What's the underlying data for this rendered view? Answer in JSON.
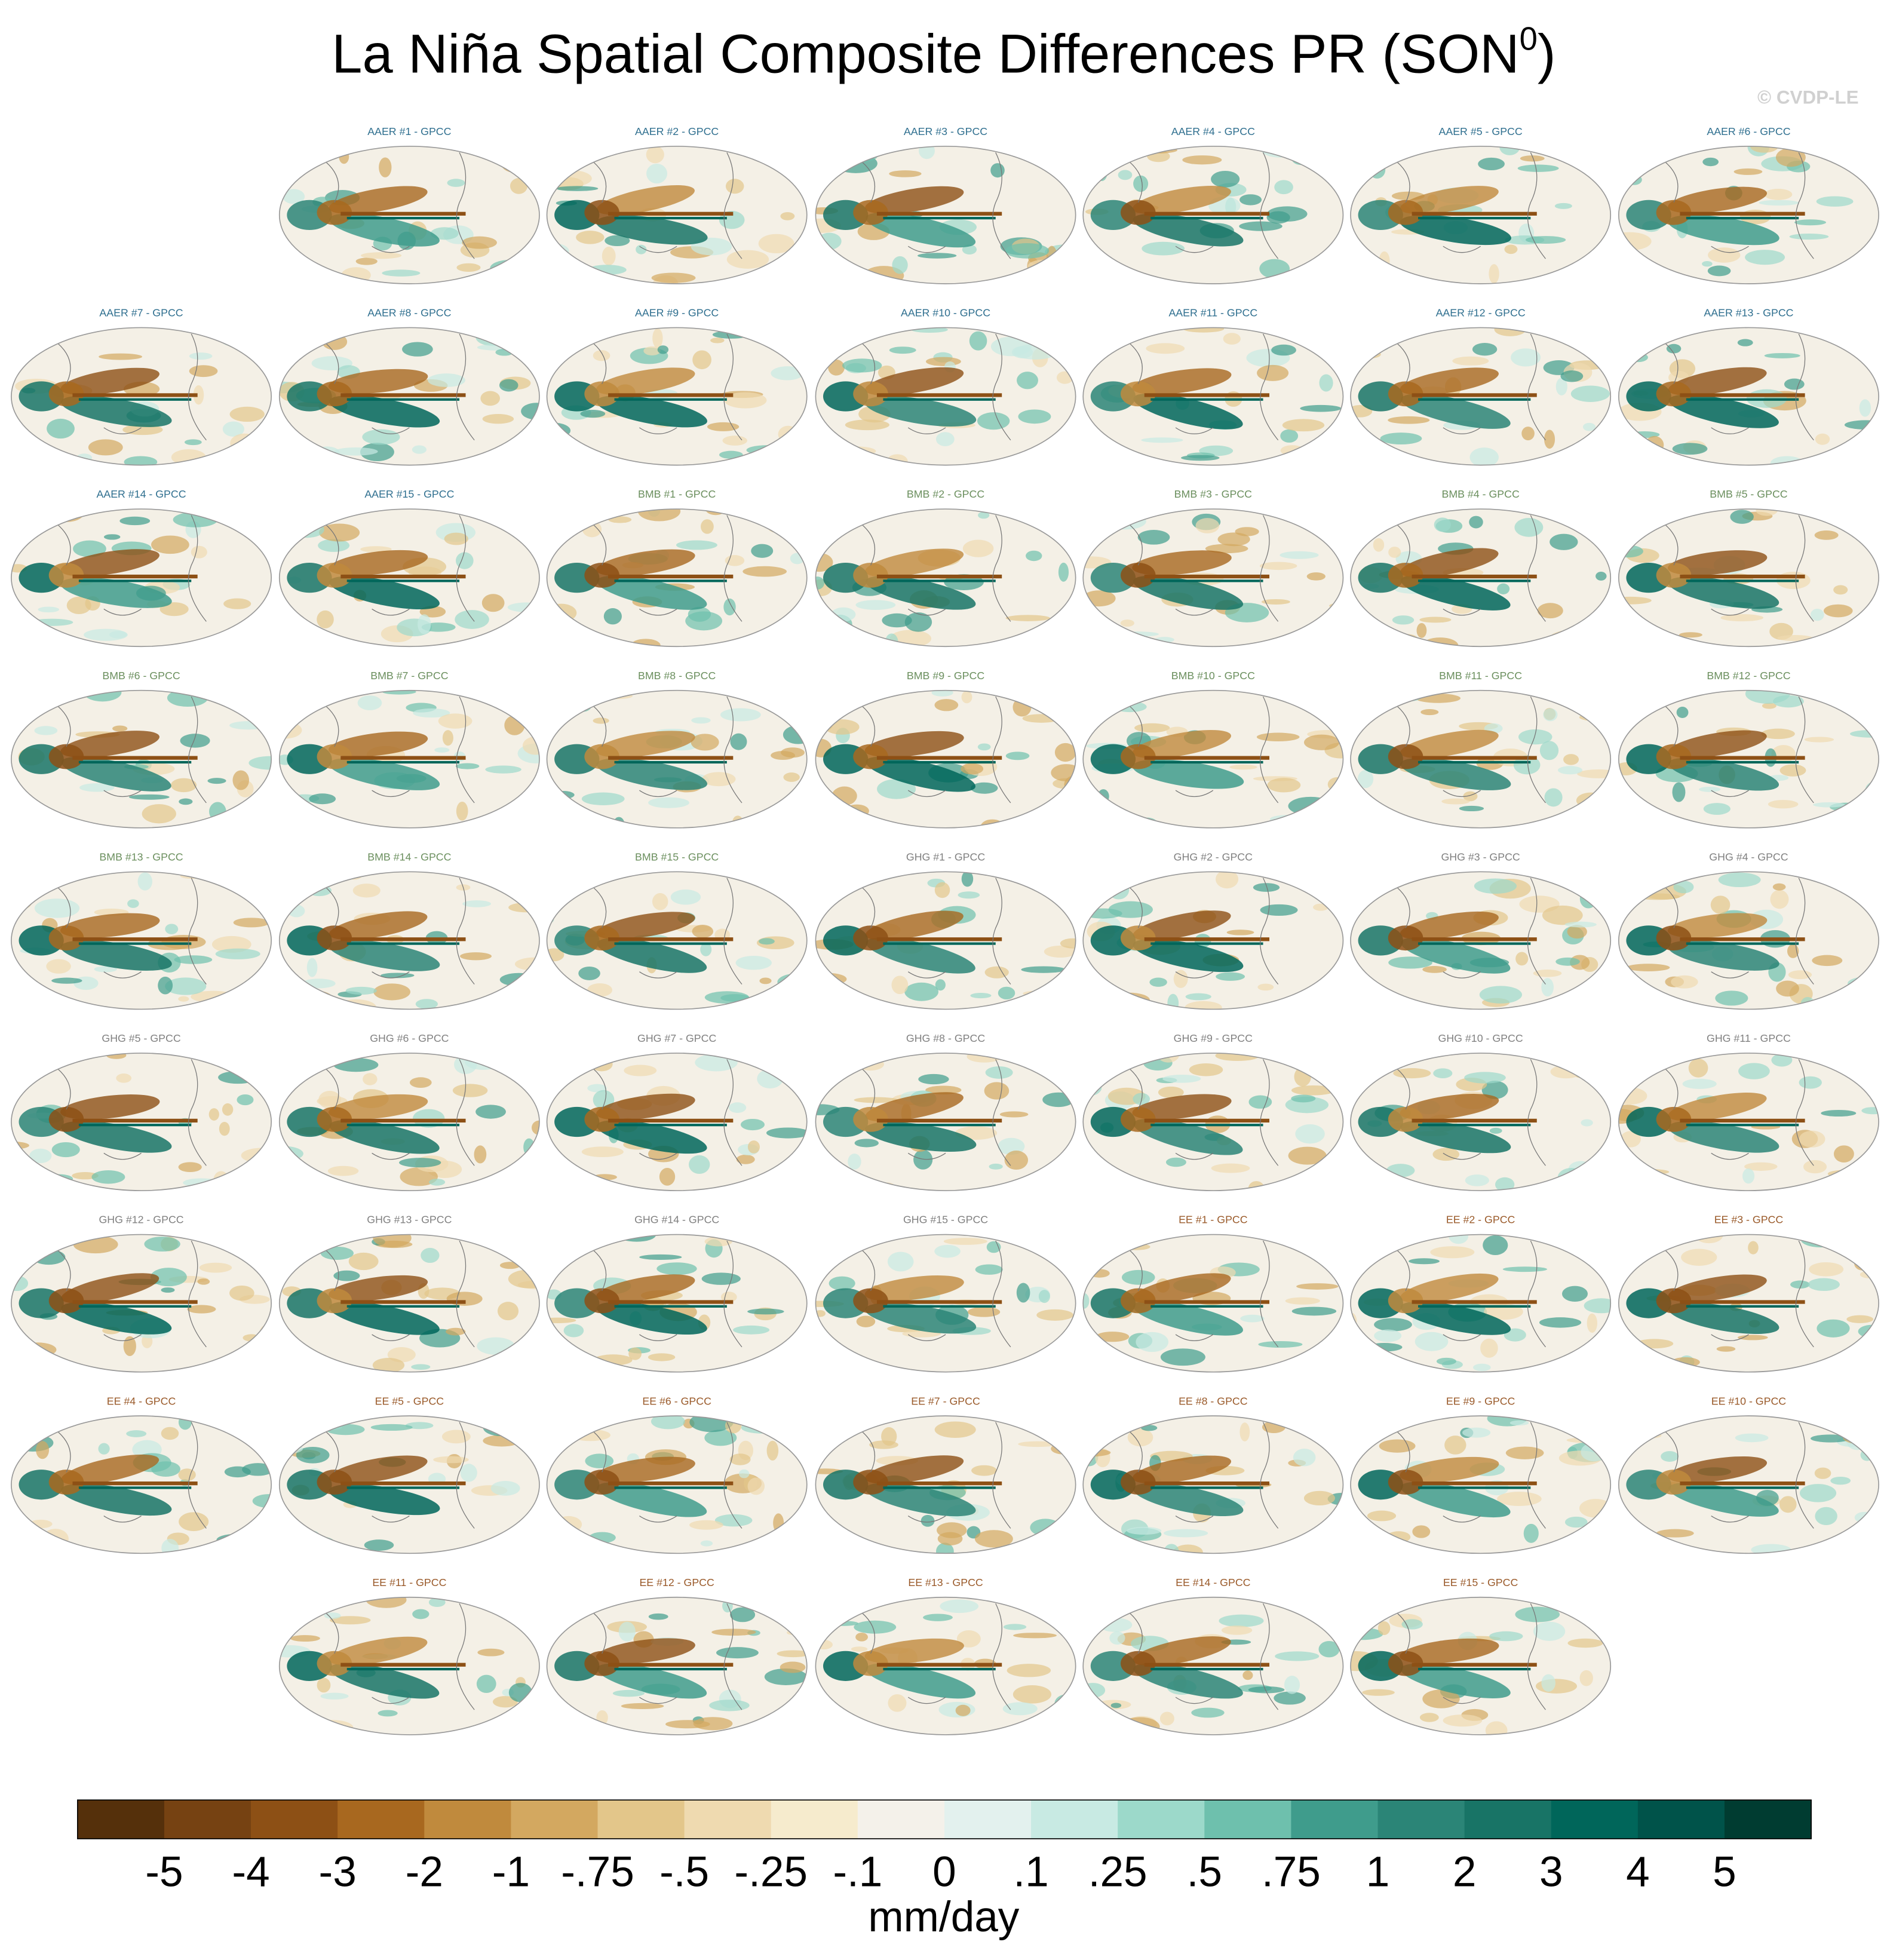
{
  "title": "La Niña Spatial Composite Differences PR (SON",
  "title_superscript": "0",
  "title_end": ")",
  "watermark": "© CVDP-LE",
  "panels": [
    {
      "title": "AAER #1 - GPCC",
      "color": "#2f6f8f"
    },
    {
      "title": "AAER #2 - GPCC",
      "color": "#2f6f8f"
    },
    {
      "title": "AAER #3 - GPCC",
      "color": "#2f6f8f"
    },
    {
      "title": "AAER #4 - GPCC",
      "color": "#2f6f8f"
    },
    {
      "title": "AAER #5 - GPCC",
      "color": "#2f6f8f"
    },
    {
      "title": "AAER #6 - GPCC",
      "color": "#2f6f8f"
    },
    {
      "title": "AAER #7 - GPCC",
      "color": "#2f6f8f"
    },
    {
      "title": "AAER #8 - GPCC",
      "color": "#2f6f8f"
    },
    {
      "title": "AAER #9 - GPCC",
      "color": "#2f6f8f"
    },
    {
      "title": "AAER #10 - GPCC",
      "color": "#2f6f8f"
    },
    {
      "title": "AAER #11 - GPCC",
      "color": "#2f6f8f"
    },
    {
      "title": "AAER #12 - GPCC",
      "color": "#2f6f8f"
    },
    {
      "title": "AAER #13 - GPCC",
      "color": "#2f6f8f"
    },
    {
      "title": "AAER #14 - GPCC",
      "color": "#2f6f8f"
    },
    {
      "title": "AAER #15 - GPCC",
      "color": "#2f6f8f"
    },
    {
      "title": "BMB #1 - GPCC",
      "color": "#6b8f5e"
    },
    {
      "title": "BMB #2 - GPCC",
      "color": "#6b8f5e"
    },
    {
      "title": "BMB #3 - GPCC",
      "color": "#6b8f5e"
    },
    {
      "title": "BMB #4 - GPCC",
      "color": "#6b8f5e"
    },
    {
      "title": "BMB #5 - GPCC",
      "color": "#6b8f5e"
    },
    {
      "title": "BMB #6 - GPCC",
      "color": "#6b8f5e"
    },
    {
      "title": "BMB #7 - GPCC",
      "color": "#6b8f5e"
    },
    {
      "title": "BMB #8 - GPCC",
      "color": "#6b8f5e"
    },
    {
      "title": "BMB #9 - GPCC",
      "color": "#6b8f5e"
    },
    {
      "title": "BMB #10 - GPCC",
      "color": "#6b8f5e"
    },
    {
      "title": "BMB #11 - GPCC",
      "color": "#6b8f5e"
    },
    {
      "title": "BMB #12 - GPCC",
      "color": "#6b8f5e"
    },
    {
      "title": "BMB #13 - GPCC",
      "color": "#6b8f5e"
    },
    {
      "title": "BMB #14 - GPCC",
      "color": "#6b8f5e"
    },
    {
      "title": "BMB #15 - GPCC",
      "color": "#6b8f5e"
    },
    {
      "title": "GHG #1 - GPCC",
      "color": "#808080"
    },
    {
      "title": "GHG #2 - GPCC",
      "color": "#808080"
    },
    {
      "title": "GHG #3 - GPCC",
      "color": "#808080"
    },
    {
      "title": "GHG #4 - GPCC",
      "color": "#808080"
    },
    {
      "title": "GHG #5 - GPCC",
      "color": "#808080"
    },
    {
      "title": "GHG #6 - GPCC",
      "color": "#808080"
    },
    {
      "title": "GHG #7 - GPCC",
      "color": "#808080"
    },
    {
      "title": "GHG #8 - GPCC",
      "color": "#808080"
    },
    {
      "title": "GHG #9 - GPCC",
      "color": "#808080"
    },
    {
      "title": "GHG #10 - GPCC",
      "color": "#808080"
    },
    {
      "title": "GHG #11 - GPCC",
      "color": "#808080"
    },
    {
      "title": "GHG #12 - GPCC",
      "color": "#808080"
    },
    {
      "title": "GHG #13 - GPCC",
      "color": "#808080"
    },
    {
      "title": "GHG #14 - GPCC",
      "color": "#808080"
    },
    {
      "title": "GHG #15 - GPCC",
      "color": "#808080"
    },
    {
      "title": "EE #1 - GPCC",
      "color": "#9a5a2a"
    },
    {
      "title": "EE #2 - GPCC",
      "color": "#9a5a2a"
    },
    {
      "title": "EE #3 - GPCC",
      "color": "#9a5a2a"
    },
    {
      "title": "EE #4 - GPCC",
      "color": "#9a5a2a"
    },
    {
      "title": "EE #5 - GPCC",
      "color": "#9a5a2a"
    },
    {
      "title": "EE #6 - GPCC",
      "color": "#9a5a2a"
    },
    {
      "title": "EE #7 - GPCC",
      "color": "#9a5a2a"
    },
    {
      "title": "EE #8 - GPCC",
      "color": "#9a5a2a"
    },
    {
      "title": "EE #9 - GPCC",
      "color": "#9a5a2a"
    },
    {
      "title": "EE #10 - GPCC",
      "color": "#9a5a2a"
    },
    {
      "title": "EE #11 - GPCC",
      "color": "#9a5a2a"
    },
    {
      "title": "EE #12 - GPCC",
      "color": "#9a5a2a"
    },
    {
      "title": "EE #13 - GPCC",
      "color": "#9a5a2a"
    },
    {
      "title": "EE #14 - GPCC",
      "color": "#9a5a2a"
    },
    {
      "title": "EE #15 - GPCC",
      "color": "#9a5a2a"
    }
  ],
  "colorbar": {
    "label": "mm/day",
    "colors": [
      "#55300b",
      "#764212",
      "#8d5015",
      "#a8681f",
      "#c08a3d",
      "#d3a860",
      "#e3c68a",
      "#efdab0",
      "#f6ebcd",
      "#f4f1ea",
      "#e3f1ee",
      "#c8eae3",
      "#9cd9ca",
      "#6ec0ad",
      "#3f9c8c",
      "#2b8577",
      "#187466",
      "#00665a",
      "#00534a",
      "#003c31"
    ],
    "ticks": [
      -5,
      -4,
      -3,
      -2,
      -1,
      {
        "value": -0.75,
        "label": "-.75"
      },
      {
        "value": -0.5,
        "label": "-.5"
      },
      {
        "value": -0.25,
        "label": "-.25"
      },
      {
        "value": -0.1,
        "label": "-.1"
      },
      0,
      {
        "value": 0.1,
        "label": ".1"
      },
      {
        "value": 0.25,
        "label": ".25"
      },
      {
        "value": 0.5,
        "label": ".5"
      },
      {
        "value": 0.75,
        "label": ".75"
      },
      1,
      2,
      3,
      4,
      5
    ]
  }
}
